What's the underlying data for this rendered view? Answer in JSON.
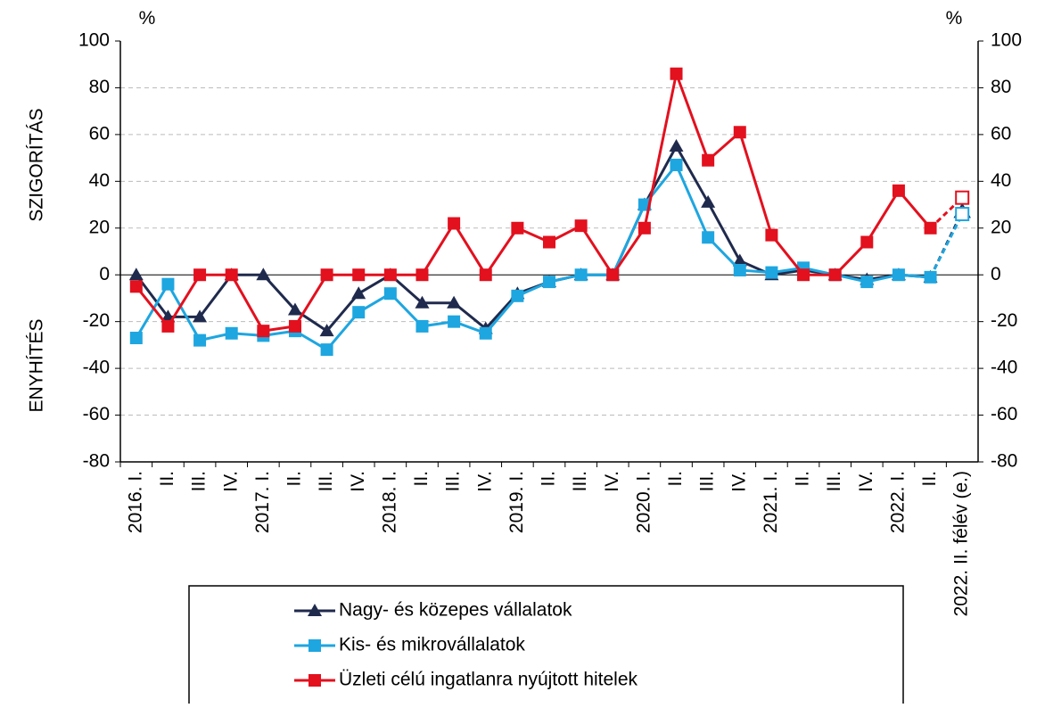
{
  "chart_data": {
    "type": "line",
    "y_unit_left": "%",
    "y_unit_right": "%",
    "ylabel_top": "SZIGORÍTÁS",
    "ylabel_bottom": "ENYHÍTÉS",
    "categories": [
      "2016. I.",
      "II.",
      "III.",
      "IV.",
      "2017. I.",
      "II.",
      "III.",
      "IV.",
      "2018. I.",
      "II.",
      "III.",
      "IV.",
      "2019. I.",
      "II.",
      "III.",
      "IV.",
      "2020. I.",
      "II.",
      "III.",
      "IV.",
      "2021. I.",
      "II.",
      "III.",
      "IV.",
      "2022. I.",
      "II.",
      "2022. II. félév (e.)"
    ],
    "series": [
      {
        "name": "Nagy- és közepes vállalatok",
        "color": "#1f2a4d",
        "marker": "triangle",
        "values": [
          0,
          -18,
          -18,
          0,
          0,
          -15,
          -24,
          -8,
          0,
          -12,
          -12,
          -23,
          -8,
          -3,
          0,
          0,
          30,
          55,
          31,
          6,
          0,
          2,
          0,
          -2,
          0,
          -1,
          27
        ]
      },
      {
        "name": "Kis- és mikrovállalatok",
        "color": "#1ea6e0",
        "marker": "square",
        "values": [
          -27,
          -4,
          -28,
          -25,
          -26,
          -24,
          -32,
          -16,
          -8,
          -22,
          -20,
          -25,
          -9,
          -3,
          0,
          0,
          30,
          47,
          16,
          2,
          1,
          3,
          0,
          -3,
          0,
          -1,
          26
        ]
      },
      {
        "name": "Üzleti célú ingatlanra nyújtott hitelek",
        "color": "#e3101e",
        "marker": "square",
        "values": [
          -5,
          -22,
          0,
          0,
          -24,
          -22,
          0,
          0,
          0,
          0,
          22,
          0,
          20,
          14,
          21,
          0,
          20,
          86,
          49,
          61,
          17,
          0,
          0,
          14,
          36,
          20,
          33
        ]
      }
    ],
    "ylim": [
      -80,
      100
    ],
    "yticks": [
      -80,
      -60,
      -40,
      -20,
      0,
      20,
      40,
      60,
      80,
      100
    ],
    "y2lim": [
      -80,
      100
    ],
    "y2ticks": [
      -80,
      -60,
      -40,
      -20,
      0,
      20,
      40,
      60,
      80,
      100
    ],
    "grid": true
  }
}
